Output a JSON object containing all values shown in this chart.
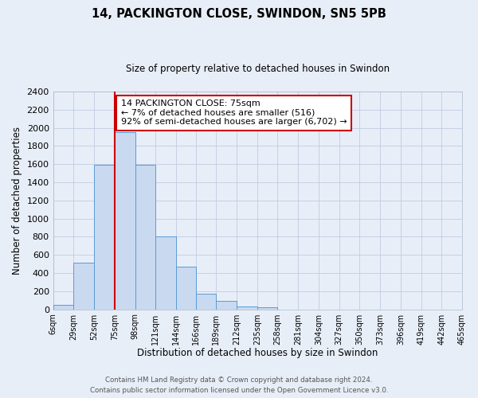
{
  "title": "14, PACKINGTON CLOSE, SWINDON, SN5 5PB",
  "subtitle": "Size of property relative to detached houses in Swindon",
  "xlabel": "Distribution of detached houses by size in Swindon",
  "ylabel": "Number of detached properties",
  "bin_edges": [
    6,
    29,
    52,
    75,
    98,
    121,
    144,
    166,
    189,
    212,
    235,
    258,
    281,
    304,
    327,
    350,
    373,
    396,
    419,
    442,
    465
  ],
  "bar_heights": [
    50,
    510,
    1590,
    1950,
    1590,
    800,
    470,
    175,
    90,
    35,
    25,
    0,
    0,
    0,
    0,
    0,
    0,
    0,
    0,
    0
  ],
  "bar_color": "#c9d9f0",
  "bar_edge_color": "#5b9bd5",
  "red_line_x": 75,
  "ylim": [
    0,
    2400
  ],
  "yticks": [
    0,
    200,
    400,
    600,
    800,
    1000,
    1200,
    1400,
    1600,
    1800,
    2000,
    2200,
    2400
  ],
  "xtick_labels": [
    "6sqm",
    "29sqm",
    "52sqm",
    "75sqm",
    "98sqm",
    "121sqm",
    "144sqm",
    "166sqm",
    "189sqm",
    "212sqm",
    "235sqm",
    "258sqm",
    "281sqm",
    "304sqm",
    "327sqm",
    "350sqm",
    "373sqm",
    "396sqm",
    "419sqm",
    "442sqm",
    "465sqm"
  ],
  "annotation_line1": "14 PACKINGTON CLOSE: 75sqm",
  "annotation_line2": "← 7% of detached houses are smaller (516)",
  "annotation_line3": "92% of semi-detached houses are larger (6,702) →",
  "annotation_box_color": "#ffffff",
  "annotation_box_edge": "#cc0000",
  "footer_line1": "Contains HM Land Registry data © Crown copyright and database right 2024.",
  "footer_line2": "Contains public sector information licensed under the Open Government Licence v3.0.",
  "background_color": "#e8eef8",
  "grid_color": "#c0cce0",
  "spine_color": "#aabbcc"
}
